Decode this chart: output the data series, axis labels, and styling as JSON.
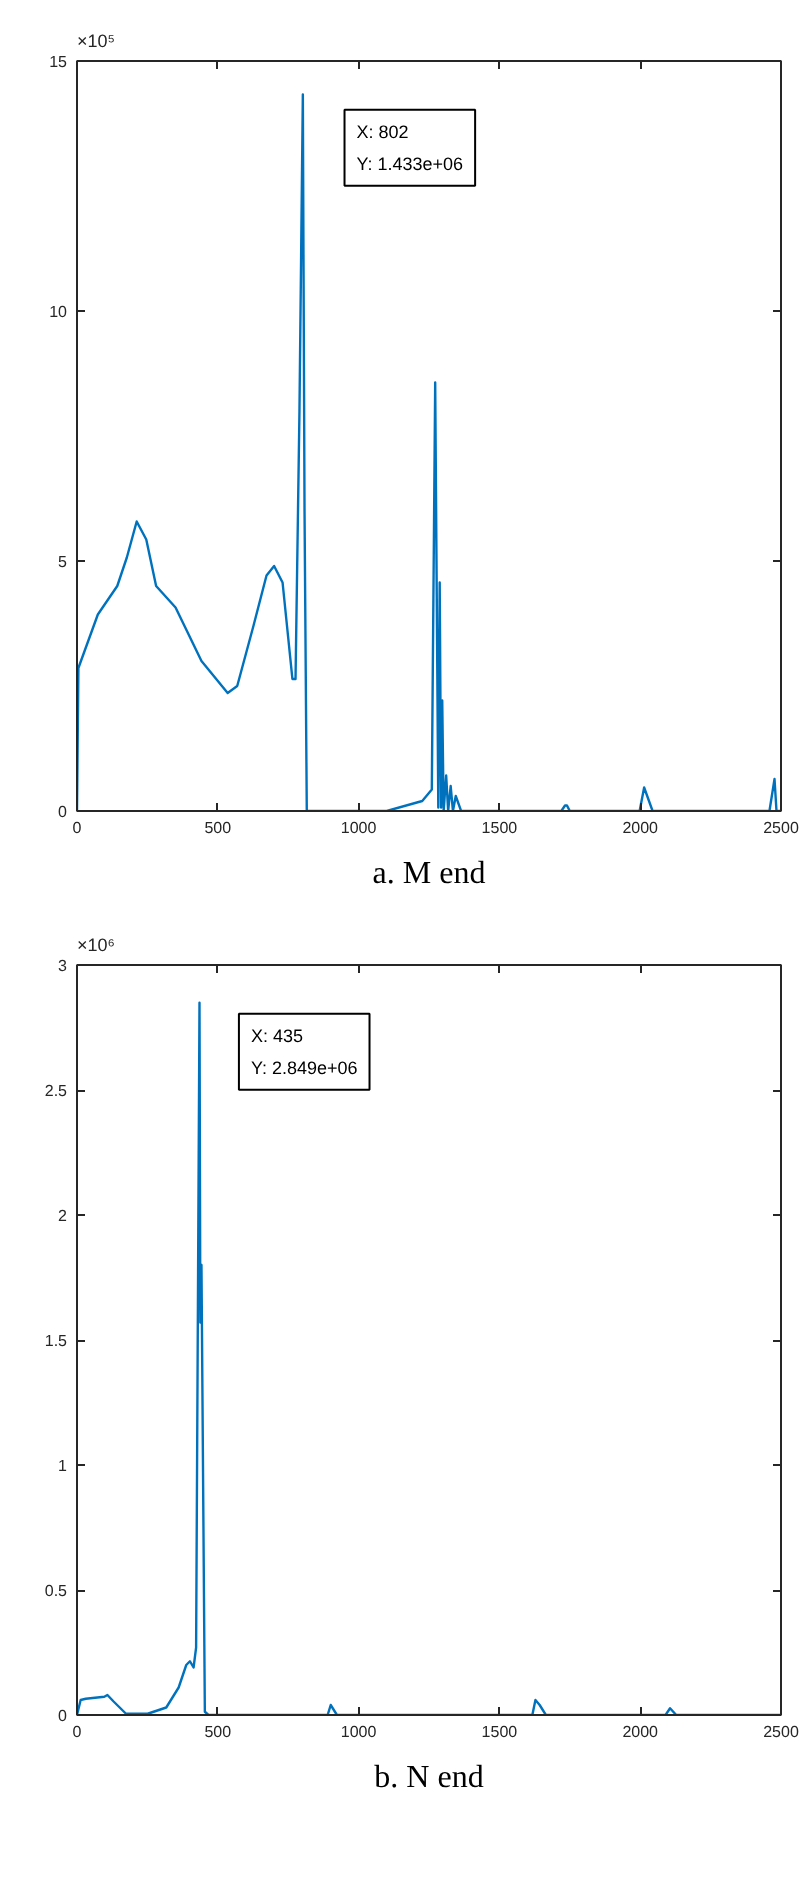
{
  "chart_data": [
    {
      "type": "line",
      "title": "a. M end",
      "annotations": [
        "×10⁵",
        "X: 802",
        "Y: 1.433e+06"
      ],
      "xlim": [
        0,
        2500
      ],
      "xticks": [
        0,
        500,
        1000,
        1500,
        2000,
        2500
      ],
      "ylim": [
        0,
        15
      ],
      "yticks": [
        0,
        5,
        10,
        15
      ],
      "grid": false,
      "series": [
        {
          "color": "#0072bd",
          "x": [
            0,
            5,
            74,
            143,
            177,
            212,
            246,
            281,
            350,
            442,
            535,
            569,
            627,
            673,
            700,
            730,
            765,
            776,
            790,
            802,
            808,
            816,
            850,
            1100,
            1226,
            1260,
            1272,
            1283,
            1288,
            1293,
            1297,
            1302,
            1311,
            1318,
            1327,
            1335,
            1345,
            1364,
            1720,
            1733,
            1740,
            1750,
            1998,
            2014,
            2044,
            2459,
            2477,
            2484,
            2500
          ],
          "values": [
            0,
            2.86,
            3.93,
            4.5,
            5.07,
            5.79,
            5.43,
            4.5,
            4.07,
            3.0,
            2.36,
            2.5,
            3.71,
            4.71,
            4.9,
            4.57,
            2.64,
            2.64,
            8.0,
            14.33,
            6.0,
            0,
            0,
            0,
            0.2,
            0.43,
            8.57,
            0.07,
            4.57,
            0.07,
            2.21,
            0,
            0.71,
            0,
            0.5,
            0,
            0.3,
            0,
            0,
            0.11,
            0.11,
            0,
            0,
            0.47,
            0,
            0,
            0.64,
            0,
            0
          ]
        }
      ]
    },
    {
      "type": "line",
      "title": "b. N end",
      "annotations": [
        "×10⁶",
        "X: 435",
        "Y: 2.849e+06"
      ],
      "xlim": [
        0,
        2500
      ],
      "xticks": [
        0,
        500,
        1000,
        1500,
        2000,
        2500
      ],
      "ylim": [
        0,
        3
      ],
      "yticks": [
        0,
        0.5,
        1,
        1.5,
        2,
        2.5,
        3
      ],
      "grid": false,
      "series": [
        {
          "color": "#0072bd",
          "x": [
            0,
            13,
            31,
            97,
            108,
            130,
            174,
            251,
            317,
            361,
            388,
            401,
            414,
            423,
            435,
            438,
            442,
            454,
            467,
            890,
            901,
            923,
            1617,
            1628,
            1643,
            1665,
            2090,
            2106,
            2128,
            2500
          ],
          "values": [
            0,
            0.06,
            0.065,
            0.073,
            0.08,
            0.054,
            0.005,
            0.005,
            0.03,
            0.11,
            0.2,
            0.215,
            0.19,
            0.27,
            2.849,
            1.57,
            1.8,
            0.013,
            0,
            0,
            0.04,
            0,
            0,
            0.06,
            0.04,
            0,
            0,
            0.027,
            0,
            0
          ]
        }
      ]
    }
  ]
}
